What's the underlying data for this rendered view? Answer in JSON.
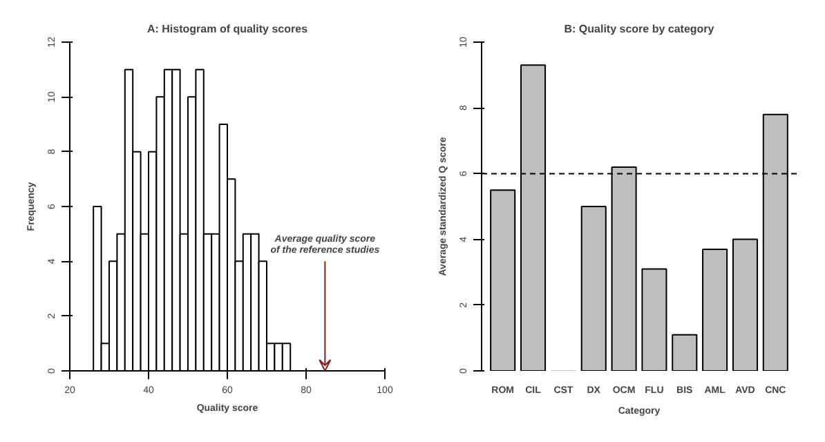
{
  "chart_data": [
    {
      "type": "histogram",
      "title": "A: Histogram of quality scores",
      "xlabel": "Quality score",
      "ylabel": "Frequency",
      "bins": [
        26,
        28,
        30,
        32,
        34,
        36,
        38,
        40,
        42,
        44,
        46,
        48,
        50,
        52,
        54,
        56,
        58,
        60,
        62,
        64,
        66,
        68,
        70,
        72,
        74,
        76
      ],
      "values": [
        6,
        1,
        4,
        5,
        11,
        8,
        5,
        8,
        10,
        11,
        11,
        5,
        10,
        11,
        5,
        5,
        9,
        7,
        4,
        5,
        5,
        4,
        1,
        1,
        1
      ],
      "color": "#ffffff",
      "xlim": [
        20,
        100
      ],
      "xticks": [
        20,
        40,
        60,
        80,
        100
      ],
      "ylim": [
        0,
        12
      ],
      "yticks": [
        0,
        2,
        4,
        6,
        8,
        10,
        12
      ],
      "grid": false,
      "annotations": [
        "Average quality score\nof the reference studies"
      ]
    },
    {
      "type": "bar",
      "title": "B: Quality score by category",
      "xlabel": "Category",
      "ylabel": "Average standardized Q score",
      "categories": [
        "ROM",
        "CIL",
        "CST",
        "DX",
        "OCM",
        "FLU",
        "BIS",
        "AML",
        "AVD",
        "CNC"
      ],
      "values": [
        5.5,
        9.3,
        0,
        5.0,
        6.2,
        3.1,
        1.1,
        3.7,
        4.0,
        7.8
      ],
      "color": "#bebebe",
      "ylim": [
        0,
        10
      ],
      "yticks": [
        0,
        2,
        4,
        6,
        8,
        10
      ],
      "grid": false,
      "ref_lines": [
        {
          "axis": "y",
          "value": 6,
          "line_style": "dashed",
          "color": "#000000"
        }
      ]
    }
  ]
}
